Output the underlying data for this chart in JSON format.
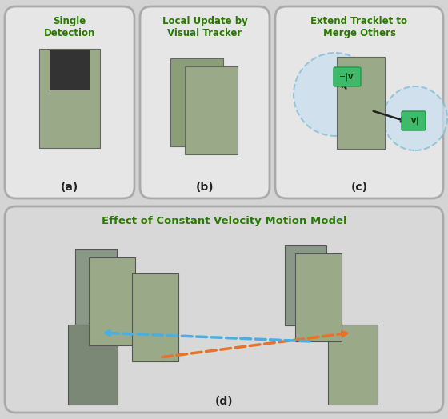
{
  "fig_width": 5.6,
  "fig_height": 5.24,
  "bg_color": "#d4d4d4",
  "top_panel_bg": "#e8e8e8",
  "bottom_panel_bg": "#d8d8d8",
  "panel_border_color": "#aaaaaa",
  "title_color": "#2a7a00",
  "label_color": "#000000",
  "title_a": "Single\nDetection",
  "title_b": "Local Update by\nVisual Tracker",
  "title_c": "Extend Tracklet to\nMerge Others",
  "title_d": "Effect of Constant Velocity Motion Model",
  "label_a": "(a)",
  "label_b": "(b)",
  "label_c": "(c)",
  "label_d": "(d)",
  "orange_color": "#E8722A",
  "blue_color": "#4AAFE0",
  "green_box_color": "#3CB371",
  "arrow_color": "#333333",
  "dashed_circle_color": "#7ab8d4"
}
